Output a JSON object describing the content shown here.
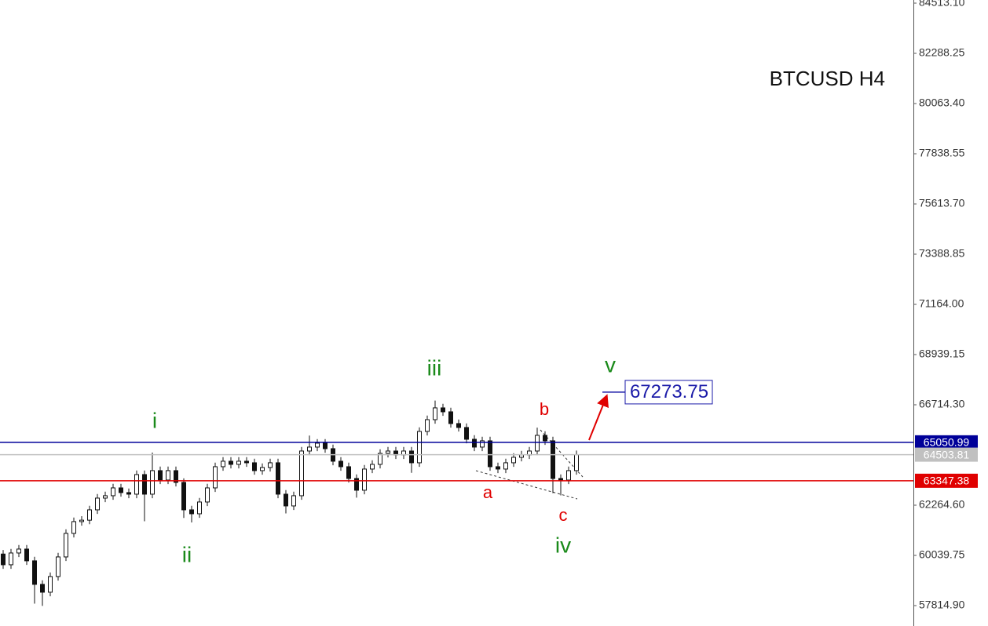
{
  "chart_data": {
    "type": "candlestick",
    "title": "BTCUSD H4",
    "open": [
      60100,
      59625,
      60146,
      60320,
      59799,
      58756,
      58408,
      59103,
      59972,
      61015,
      61537,
      61600,
      62058,
      62579,
      62684,
      63031,
      62823,
      62753,
      63622,
      62753,
      63796,
      63379,
      63796,
      63275,
      62058,
      61884,
      62406,
      63031,
      63970,
      64213,
      64074,
      64213,
      64144,
      63796,
      63935,
      64144,
      62753,
      62232,
      62684,
      64665,
      64839,
      65013,
      64769,
      64213,
      63970,
      63448,
      62927,
      63866,
      64074,
      64561,
      64665,
      64491,
      64665,
      64144,
      65534,
      66055,
      66577,
      66403,
      65882,
      65708,
      65186,
      64839,
      65117,
      63970,
      63866,
      64144,
      64387,
      64491,
      64665,
      65360,
      65117,
      63448,
      63379,
      63796
    ],
    "high": [
      60280,
      60326,
      60500,
      60500,
      59979,
      58936,
      59283,
      60152,
      61195,
      61717,
      61780,
      62238,
      62759,
      62864,
      63211,
      63211,
      63003,
      63802,
      63802,
      64600,
      63976,
      63976,
      63976,
      63455,
      62238,
      62586,
      63211,
      64150,
      64393,
      64393,
      64393,
      64393,
      64324,
      64115,
      64324,
      64324,
      62933,
      62864,
      64845,
      65350,
      65193,
      65193,
      64949,
      64393,
      64150,
      63628,
      64046,
      64254,
      64741,
      64845,
      64845,
      64845,
      64845,
      65714,
      66235,
      66900,
      66757,
      66583,
      66062,
      65888,
      65366,
      65297,
      65297,
      64150,
      64324,
      64567,
      64671,
      64845,
      65700,
      65540,
      65297,
      63628,
      63976,
      64684
    ],
    "low": [
      59445,
      59445,
      59966,
      59619,
      57900,
      57800,
      58228,
      58923,
      59792,
      60835,
      61357,
      61420,
      61878,
      62399,
      62504,
      62643,
      62573,
      62573,
      61550,
      62573,
      63199,
      63199,
      63095,
      61700,
      61500,
      61704,
      62226,
      62851,
      63790,
      63894,
      63894,
      63964,
      63616,
      63616,
      63755,
      62573,
      61900,
      62052,
      62504,
      64485,
      64659,
      64589,
      64033,
      63790,
      63268,
      62600,
      62747,
      63686,
      63894,
      64381,
      64311,
      64311,
      63700,
      63964,
      65354,
      65875,
      66223,
      65702,
      65528,
      65006,
      64659,
      64659,
      63790,
      63686,
      63686,
      63964,
      64207,
      64311,
      64485,
      64937,
      62800,
      62700,
      63199,
      63616
    ],
    "close": [
      59625,
      60146,
      60320,
      59799,
      58756,
      58408,
      59103,
      59972,
      61015,
      61537,
      61600,
      62058,
      62579,
      62684,
      63031,
      62823,
      62753,
      63622,
      62753,
      63796,
      63379,
      63796,
      63275,
      62058,
      61884,
      62406,
      63031,
      63970,
      64213,
      64074,
      64213,
      64144,
      63796,
      63935,
      64144,
      62753,
      62232,
      62684,
      64665,
      64839,
      65013,
      64769,
      64213,
      63970,
      63448,
      62927,
      63866,
      64074,
      64561,
      64665,
      64491,
      64665,
      64144,
      65534,
      66055,
      66577,
      66403,
      65882,
      65708,
      65186,
      64839,
      65117,
      63970,
      63866,
      64144,
      64387,
      64491,
      64665,
      65360,
      65117,
      63448,
      63379,
      63796,
      64504
    ],
    "ylim": [
      56911,
      84652
    ],
    "yticks": [
      {
        "value": 84513.1,
        "label": "84513.10"
      },
      82288.25,
      {
        "value": 80063.4,
        "label": "80063.40"
      },
      77838.55,
      {
        "value": 75613.7,
        "label": "75613.70"
      },
      73388.85,
      {
        "value": 71164,
        "label": "71164.00"
      },
      68939.15,
      {
        "value": 66714.3,
        "label": "66714.30"
      },
      {
        "value": 62264.6,
        "label": "62264.60"
      },
      60039.75,
      {
        "value": 57814.9,
        "label": "57814.90"
      }
    ],
    "levels": [
      {
        "value": 65050.99,
        "color": "#000099"
      },
      {
        "value": 64503.81,
        "color": "#c0c0c0"
      },
      {
        "value": 63347.38,
        "color": "#e00000"
      }
    ],
    "target": 67273.75,
    "waves": [
      "i",
      "ii",
      "iii",
      "iv",
      "v"
    ],
    "subwaves": [
      "a",
      "b",
      "c"
    ]
  }
}
